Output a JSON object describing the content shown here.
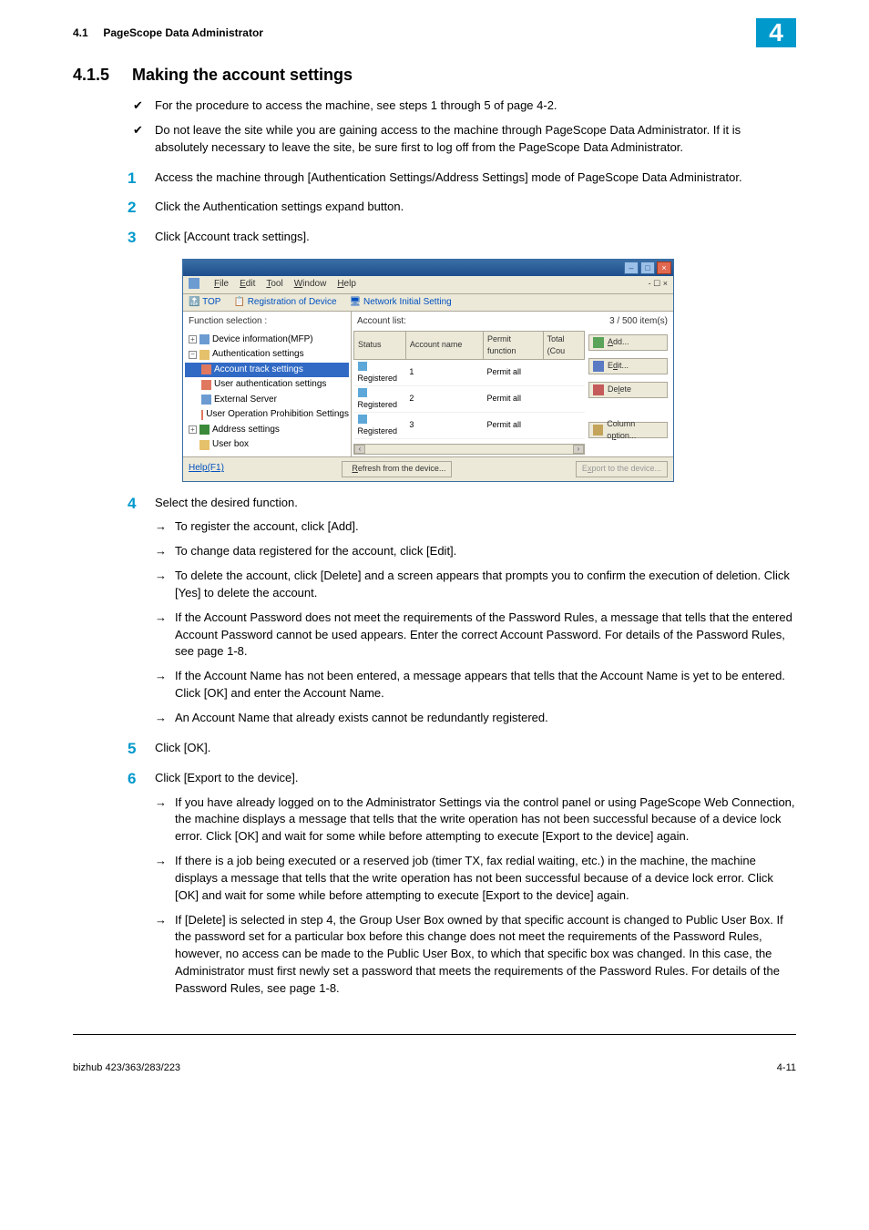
{
  "header": {
    "section_ref": "4.1",
    "section_name": "PageScope Data Administrator",
    "chapter_badge": "4"
  },
  "heading": {
    "num": "4.1.5",
    "title": "Making the account settings"
  },
  "prelim": [
    "For the procedure to access the machine, see steps 1 through 5 of page 4-2.",
    "Do not leave the site while you are gaining access to the machine through PageScope Data Administrator. If it is absolutely necessary to leave the site, be sure first to log off from the PageScope Data Administrator."
  ],
  "steps": {
    "s1": "Access the machine through [Authentication Settings/Address Settings] mode of PageScope Data Administrator.",
    "s2": "Click the Authentication settings expand button.",
    "s3": "Click [Account track settings].",
    "s4": "Select the desired function.",
    "s4_sub": [
      "To register the account, click [Add].",
      "To change data registered for the account, click [Edit].",
      "To delete the account, click [Delete] and a screen appears that prompts you to confirm the execution of deletion. Click [Yes] to delete the account.",
      "If the Account Password does not meet the requirements of the Password Rules, a message that tells that the entered Account Password cannot be used appears. Enter the correct Account Password. For details of the Password Rules, see page 1-8.",
      "If the Account Name has not been entered, a message appears that tells that the Account Name is yet to be entered. Click [OK] and enter the Account Name.",
      "An Account Name that already exists cannot be redundantly registered."
    ],
    "s5": "Click [OK].",
    "s6": "Click [Export to the device].",
    "s6_sub": [
      "If you have already logged on to the Administrator Settings via the control panel or using PageScope Web Connection, the machine displays a message that tells that the write operation has not been successful because of a device lock error. Click [OK] and wait for some while before attempting to execute [Export to the device] again.",
      "If there is a job being executed or a reserved job (timer TX, fax redial waiting, etc.) in the machine, the machine displays a message that tells that the write operation has not been successful because of a device lock error. Click [OK] and wait for some while before attempting to execute [Export to the device] again.",
      "If [Delete] is selected in step 4, the Group User Box owned by that specific account is changed to Public User Box. If the password set for a particular box before this change does not meet the requirements of the Password Rules, however, no access can be made to the Public User Box, to which that specific box was changed. In this case, the Administrator must first newly set a password that meets the requirements of the Password Rules. For details of the Password Rules, see page 1-8."
    ]
  },
  "app": {
    "menus": {
      "file": "File",
      "edit": "Edit",
      "tool": "Tool",
      "window": "Window",
      "help": "Help"
    },
    "subbar": {
      "top": "TOP",
      "reg": "Registration of Device",
      "net": "Network Initial Setting",
      "sec_ctrls": "- ☐ ×"
    },
    "left": {
      "fn_label": "Function selection :",
      "nodes": {
        "dev": "Device information(MFP)",
        "auth": "Authentication settings",
        "atrack": "Account track settings",
        "uauth": "User authentication settings",
        "ext": "External Server",
        "uop": "User Operation Prohibition Settings",
        "addr": "Address settings",
        "ubox": "User box"
      },
      "icon_colors": {
        "dev": "#6b9bd1",
        "auth": "#e6c16b",
        "atrack": "#e07860",
        "uauth": "#e07860",
        "ext": "#6b9bd1",
        "uop": "#e07860",
        "addr": "#3a8a3a",
        "ubox": "#e6c16b"
      }
    },
    "right": {
      "list_label": "Account list:",
      "count_label": "3 / 500 item(s)",
      "columns": [
        "Status",
        "Account name",
        "Permit function",
        "Total (Cou"
      ],
      "col_widths": [
        "60px",
        "110px",
        "80px",
        "55px"
      ],
      "rows": [
        {
          "status": "Registered",
          "name": "1",
          "perm": "Permit all",
          "total": ""
        },
        {
          "status": "Registered",
          "name": "2",
          "perm": "Permit all",
          "total": ""
        },
        {
          "status": "Registered",
          "name": "3",
          "perm": "Permit all",
          "total": ""
        }
      ],
      "reg_icon_color": "#5da8d8"
    },
    "buttons": {
      "add": "Add...",
      "edit": "Edit...",
      "delete": "Delete",
      "col": "Column option...",
      "icon_colors": {
        "add": "#5aa45a",
        "edit": "#5a7ac4",
        "delete": "#c45a5a",
        "col": "#c4a45a"
      }
    },
    "bottom": {
      "help": "Help(F1)",
      "refresh": "Refresh from the device...",
      "printer_label": "",
      "export": "Export to the device...",
      "icon_colors": {
        "refresh": "#5a7ac4",
        "printer": "#888",
        "export": "#888"
      }
    }
  },
  "footer": {
    "model": "bizhub 423/363/283/223",
    "page": "4-11"
  }
}
